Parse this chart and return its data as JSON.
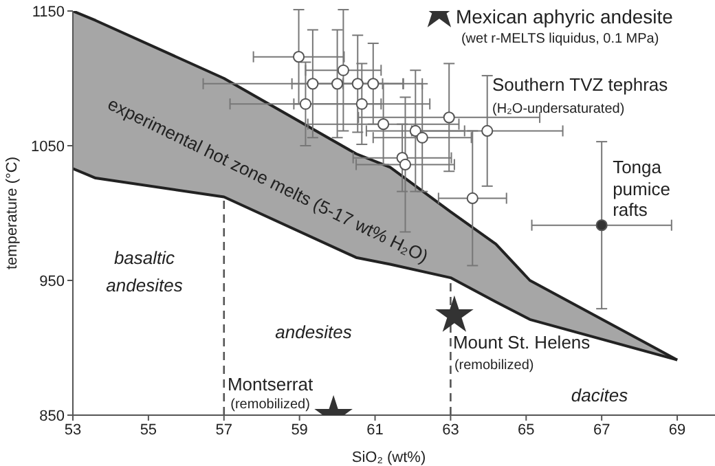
{
  "chart_data": {
    "type": "scatter",
    "xlabel": "SiO₂ (wt%)",
    "ylabel": "temperature (°C)",
    "xlim": [
      53,
      70
    ],
    "xticks": [
      53,
      55,
      57,
      59,
      61,
      63,
      65,
      67,
      69
    ],
    "ylim": [
      850,
      1150
    ],
    "yticks": [
      850,
      950,
      1050,
      1150
    ],
    "series": [
      {
        "type": "line",
        "color": "#222222",
        "x": [
          53,
          53.6,
          57,
          60.5,
          61.4,
          63,
          64.2,
          65.1,
          69
        ],
        "values": [
          1150,
          1143,
          1100,
          1044,
          1034,
          1001,
          977,
          950,
          891
        ],
        "lower": [
          1033,
          1026,
          1012,
          967,
          962,
          952,
          934,
          921,
          891
        ],
        "upper": [
          1150,
          1143,
          1100,
          1044,
          1034,
          1001,
          977,
          950,
          891
        ]
      },
      {
        "type": "line",
        "color": "#222222",
        "x": [
          53,
          53.6,
          57,
          60.5,
          61.4,
          63,
          64.2,
          65.1,
          69
        ],
        "values": [
          1033,
          1026,
          1012,
          967,
          962,
          952,
          934,
          921,
          891
        ]
      },
      {
        "marker": "circle",
        "color": "#ffffff",
        "x": [
          58.98,
          60.16,
          59.35,
          60.0,
          60.54,
          60.95,
          59.16,
          60.65,
          61.22,
          62.96,
          63.97,
          62.07,
          62.25,
          61.72,
          61.8,
          63.58
        ],
        "values": [
          1116,
          1106,
          1096,
          1096,
          1096,
          1096,
          1081,
          1081,
          1066,
          1071,
          1061,
          1061,
          1056,
          1041,
          1036,
          1011
        ],
        "xerrors": [
          1.2,
          1.0,
          2.9,
          1.2,
          1.2,
          0.8,
          2,
          1.8,
          2,
          2.4,
          2,
          1.3,
          1.3,
          1.3,
          1.3,
          0.9
        ],
        "errors": [
          35,
          45,
          40,
          40,
          36,
          30,
          31,
          30,
          30,
          40,
          41,
          45,
          40,
          25,
          50,
          50
        ]
      },
      {
        "marker": "circle",
        "color": "#333333",
        "x": [
          67
        ],
        "values": [
          991
        ],
        "xerrors": [
          1.85
        ],
        "errors": [
          62
        ]
      },
      {
        "marker": "star",
        "color": "#333333",
        "x": [
          62.7,
          63.1,
          59.9
        ],
        "values": [
          1150,
          924,
          850
        ]
      }
    ],
    "ref_lines": [
      {
        "axis": "x",
        "value": 57,
        "line_style": "dashed",
        "color": "#555555"
      },
      {
        "axis": "x",
        "value": 63,
        "line_style": "dashed",
        "color": "#555555"
      }
    ],
    "annotations": [
      {
        "text": "Mexican aphyric andesite\n(wet r-MELTS liquidus, 0.1 MPa)",
        "x": 62.7,
        "y": 1150
      },
      "Southern TVZ tephras\n(H₂O-undersaturated)",
      {
        "text": "Tonga\npumice\nrafts",
        "x": 67,
        "y": 991
      },
      {
        "text": "Mount St. Helens\n(remobilized)",
        "x": 63.1,
        "y": 924
      },
      {
        "text": "Montserrat\n(remobilized)",
        "x": 59.9,
        "y": 850
      },
      "experimental hot zone melts (5-17 wt% H₂O)",
      "basaltic\nandesites",
      "andesites",
      "dacites"
    ]
  }
}
